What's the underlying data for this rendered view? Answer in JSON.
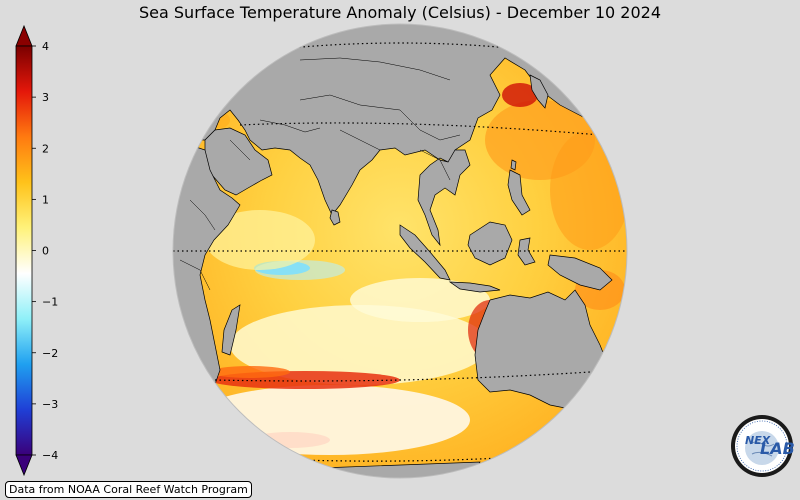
{
  "title": "Sea Surface Temperature Anomaly (Celsius) - December 10 2024",
  "colorbar": {
    "min": -4,
    "max": 4,
    "extend": "both",
    "ticks": [
      {
        "value": 4,
        "label": "4"
      },
      {
        "value": 3,
        "label": "3"
      },
      {
        "value": 2,
        "label": "2"
      },
      {
        "value": 1,
        "label": "1"
      },
      {
        "value": 0,
        "label": "0"
      },
      {
        "value": -1,
        "label": "−1"
      },
      {
        "value": -2,
        "label": "−2"
      },
      {
        "value": -3,
        "label": "−3"
      },
      {
        "value": -4,
        "label": "−4"
      }
    ],
    "colors": [
      "#3a007a",
      "#1f3fd6",
      "#1fa0f0",
      "#8ff0f8",
      "#ffffff",
      "#fff27a",
      "#ffc21a",
      "#ff7a10",
      "#e4170a",
      "#7a0000"
    ]
  },
  "map": {
    "projection": "orthographic",
    "center": "Indian Ocean / Maritime Continent",
    "land_color": "#a9a9a9",
    "background_color": "#dcdcdc",
    "graticule": "dotted"
  },
  "credit": "Data from NOAA Coral Reef Watch Program",
  "logo": {
    "text": "NEX LAB",
    "icon": "nexlab-globe-logo"
  }
}
